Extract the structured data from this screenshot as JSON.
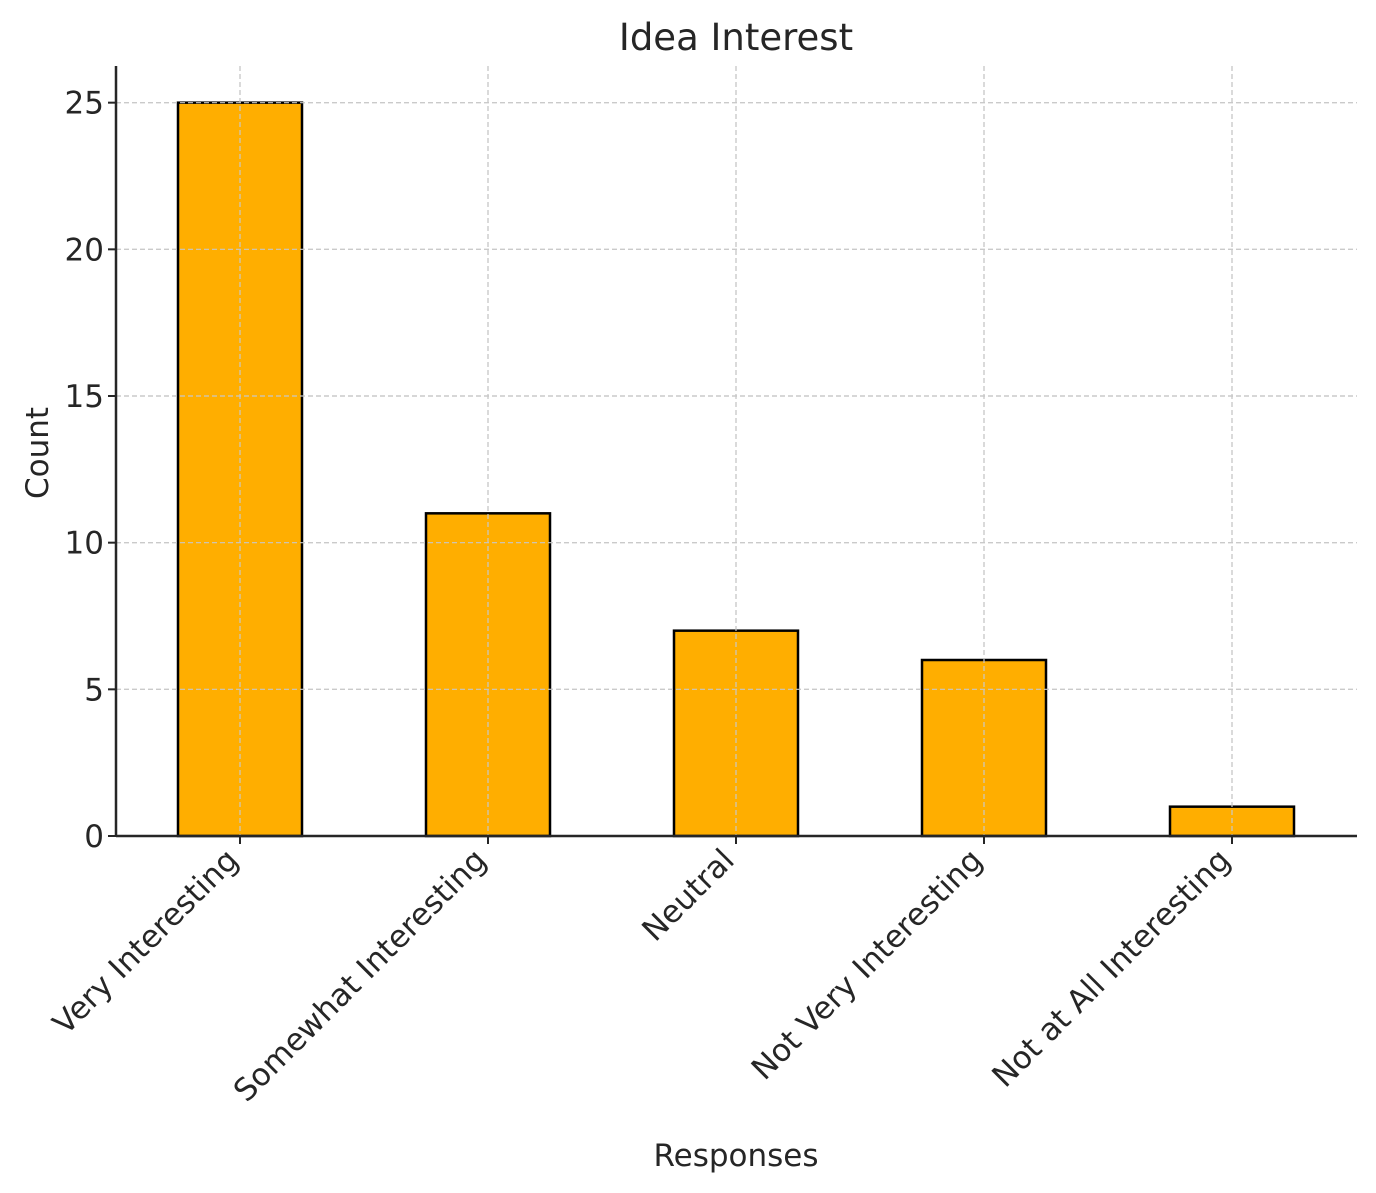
{
  "chart_data": {
    "type": "bar",
    "title": "Idea Interest",
    "xlabel": "Responses",
    "ylabel": "Count",
    "categories": [
      "Very Interesting",
      "Somewhat Interesting",
      "Neutral",
      "Not Very Interesting",
      "Not at All Interesting"
    ],
    "values": [
      25,
      11,
      7,
      6,
      1
    ],
    "ylim": [
      0,
      26.25
    ],
    "yticks": [
      0,
      5,
      10,
      15,
      20,
      25
    ],
    "grid": true,
    "legend": "none",
    "colors": {
      "bar_fill": "#FFAE00",
      "bar_edge": "#000000",
      "grid": "#C8C8C8",
      "axis": "#262626"
    }
  }
}
